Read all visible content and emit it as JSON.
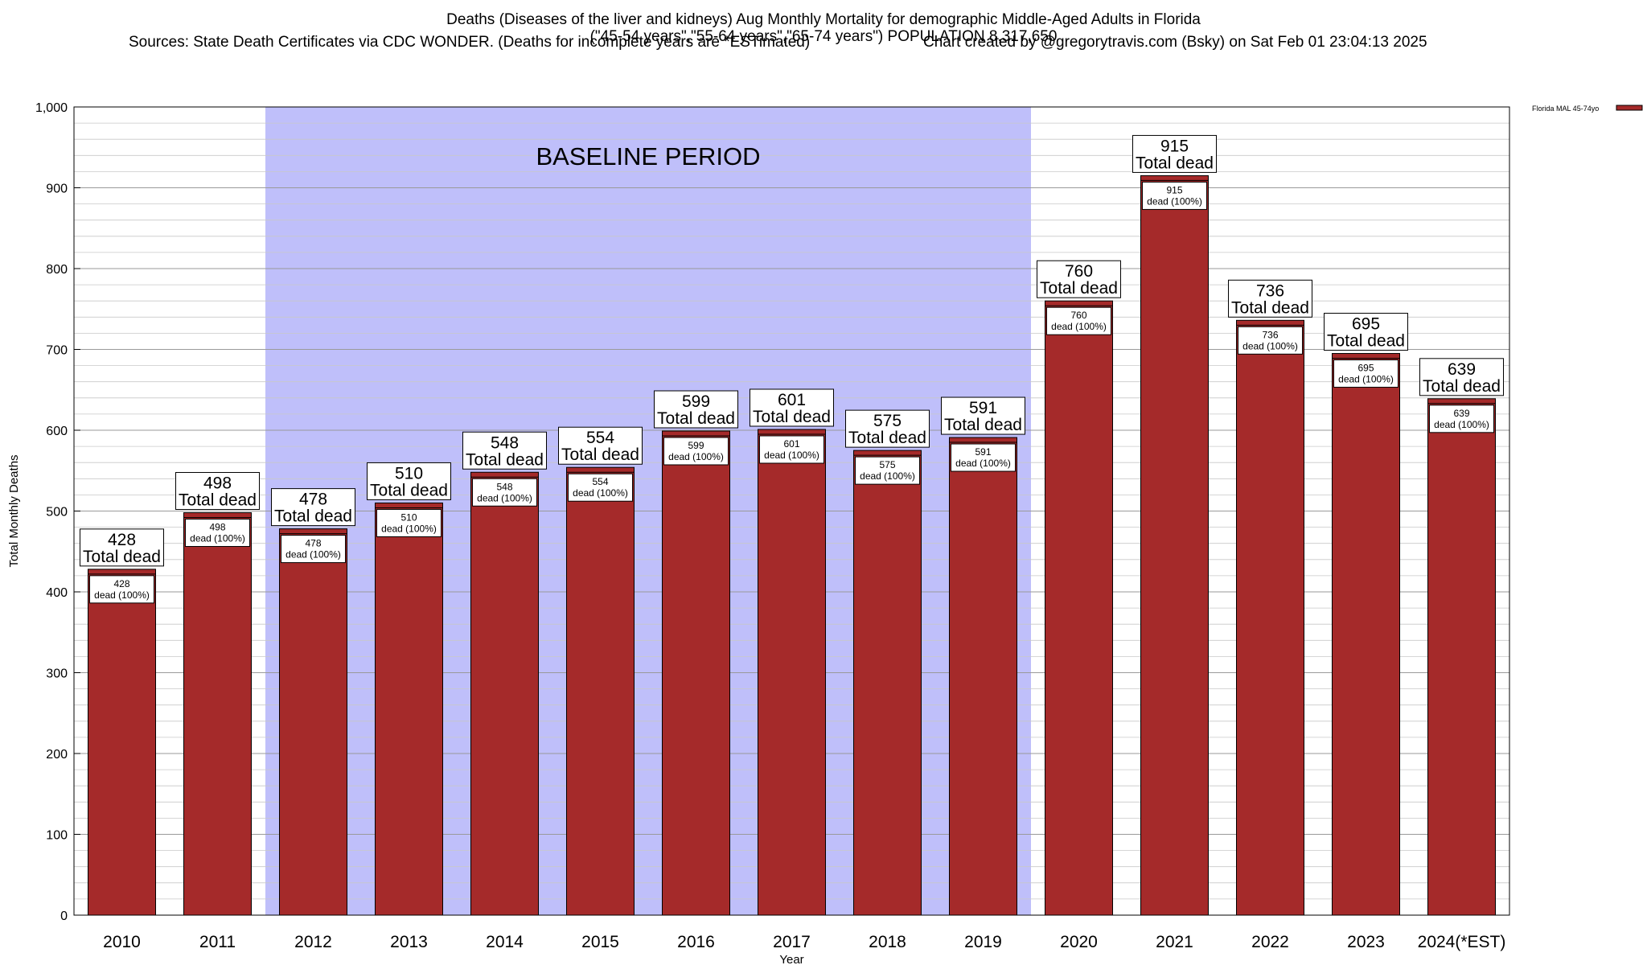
{
  "header": {
    "title_line1": "Deaths (Diseases of the liver and kidneys) Aug Monthly Mortality for demographic Middle-Aged Adults in Florida",
    "title_line2": "(\"45-54 years\",\"55-64 years\",\"65-74 years\") POPULATION 8,317,650",
    "sources": "Sources: State Death Certificates via CDC WONDER. (Deaths for incomplete years are *ESTimated)",
    "credit": "Chart created by @gregorytravis.com (Bsky) on Sat Feb 01 23:04:13 2025"
  },
  "chart_data": {
    "type": "bar",
    "categories": [
      "2010",
      "2011",
      "2012",
      "2013",
      "2014",
      "2015",
      "2016",
      "2017",
      "2018",
      "2019",
      "2020",
      "2021",
      "2022",
      "2023",
      "2024(*EST)"
    ],
    "series": [
      {
        "name": "Florida MAL 45-74yo",
        "values": [
          428,
          498,
          478,
          510,
          548,
          554,
          599,
          601,
          575,
          591,
          760,
          915,
          736,
          695,
          639
        ],
        "color": "#a52a2a"
      }
    ],
    "xlabel": "Year",
    "ylabel": "Total Monthly Deaths",
    "ylim": [
      0,
      1000
    ],
    "yticks": [
      0,
      100,
      200,
      300,
      400,
      500,
      600,
      700,
      800,
      900,
      1000
    ],
    "ytick_labels": [
      "0",
      "100",
      "200",
      "300",
      "400",
      "500",
      "600",
      "700",
      "800",
      "900",
      "1,000"
    ],
    "grid": true,
    "legend_position": "top-right",
    "annotations": {
      "baseline_label": "BASELINE PERIOD",
      "baseline_range": [
        "2012",
        "2019"
      ],
      "baseline_color": "#bfbffa",
      "total_label_suffix": "Total dead",
      "inner_label_suffix": "dead (100%)"
    },
    "colors": {
      "bar_fill": "#a52a2a",
      "bar_cap": "#a52a2a",
      "grid": "#c8c8c8",
      "axis": "#000000"
    }
  }
}
